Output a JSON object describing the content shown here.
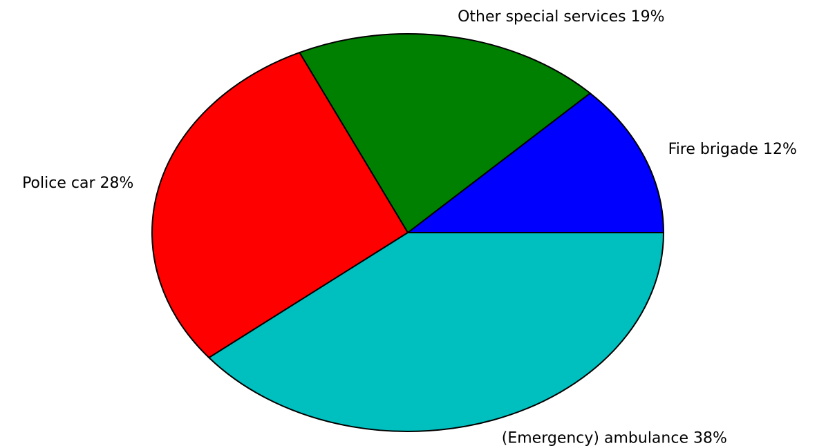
{
  "chart_data": {
    "type": "pie",
    "categories": [
      "Fire brigade",
      "Other special services",
      "Police car",
      "(Emergency) ambulance"
    ],
    "values": [
      12,
      19,
      28,
      38
    ],
    "value_labels": [
      "12%",
      "19%",
      "28%",
      "38%"
    ],
    "colors": [
      "#0000ff",
      "#008000",
      "#ff0000",
      "#00bfbf"
    ]
  }
}
